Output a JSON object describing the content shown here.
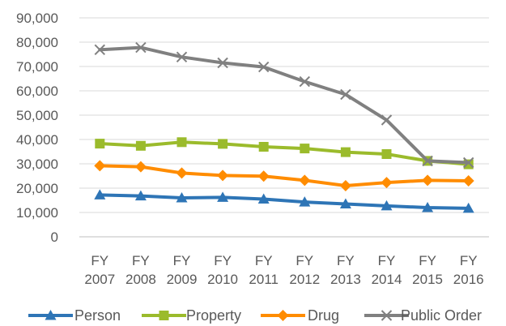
{
  "chart_data": {
    "type": "line",
    "title": "",
    "xlabel": "",
    "ylabel": "",
    "ylim": [
      0,
      90000
    ],
    "ytick_step": 10000,
    "yticks": [
      "0",
      "10,000",
      "20,000",
      "30,000",
      "40,000",
      "50,000",
      "60,000",
      "70,000",
      "80,000",
      "90,000"
    ],
    "grid": "horizontal",
    "legend": "bottom",
    "categories": [
      [
        "FY",
        "2007"
      ],
      [
        "FY",
        "2008"
      ],
      [
        "FY",
        "2009"
      ],
      [
        "FY",
        "2010"
      ],
      [
        "FY",
        "2011"
      ],
      [
        "FY",
        "2012"
      ],
      [
        "FY",
        "2013"
      ],
      [
        "FY",
        "2014"
      ],
      [
        "FY",
        "2015"
      ],
      [
        "FY",
        "2016"
      ]
    ],
    "series": [
      {
        "name": "Person",
        "color": "#2e75b6",
        "marker": "triangle",
        "values": [
          17200,
          16800,
          16000,
          16200,
          15500,
          14300,
          13500,
          12700,
          12000,
          11700
        ]
      },
      {
        "name": "Property",
        "color": "#9bbb2c",
        "marker": "square",
        "values": [
          38300,
          37400,
          38900,
          38200,
          37000,
          36300,
          34800,
          34000,
          31200,
          29800
        ]
      },
      {
        "name": "Drug",
        "color": "#ff8c00",
        "marker": "diamond",
        "values": [
          29200,
          28800,
          26200,
          25200,
          24900,
          23200,
          21000,
          22300,
          23200,
          23000
        ]
      },
      {
        "name": "Public Order",
        "color": "#808080",
        "marker": "x",
        "values": [
          76900,
          77800,
          73900,
          71500,
          69800,
          63800,
          58500,
          48000,
          31200,
          30500
        ]
      }
    ]
  }
}
